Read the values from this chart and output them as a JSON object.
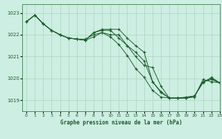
{
  "title": "Graphe pression niveau de la mer (hPa)",
  "background_color": "#cdeee2",
  "grid_color": "#aad4be",
  "line_color": "#1a5c2a",
  "spine_color": "#3a7a4a",
  "xlim": [
    -0.5,
    23
  ],
  "ylim": [
    1018.5,
    1023.4
  ],
  "yticks": [
    1019,
    1020,
    1021,
    1022,
    1023
  ],
  "xtick_labels": [
    "0",
    "1",
    "2",
    "3",
    "4",
    "5",
    "6",
    "7",
    "8",
    "9",
    "10",
    "11",
    "12",
    "13",
    "14",
    "15",
    "16",
    "17",
    "18",
    "19",
    "20",
    "21",
    "22",
    "23"
  ],
  "series": [
    [
      1022.6,
      1022.9,
      1022.5,
      1022.2,
      1022.0,
      1021.85,
      1021.8,
      1021.75,
      1022.1,
      1022.25,
      1022.25,
      1022.25,
      1021.85,
      1021.5,
      1021.2,
      1019.85,
      1019.4,
      1019.1,
      1019.1,
      1019.1,
      1019.15,
      1019.95,
      1019.85,
      1019.8
    ],
    [
      1022.6,
      1022.9,
      1022.5,
      1022.2,
      1022.0,
      1021.85,
      1021.8,
      1021.75,
      1022.1,
      1022.2,
      1022.2,
      1021.85,
      1021.5,
      1021.2,
      1020.8,
      1019.85,
      1019.35,
      1019.1,
      1019.1,
      1019.1,
      1019.2,
      1019.85,
      1019.95,
      1019.8
    ],
    [
      1022.6,
      1022.9,
      1022.5,
      1022.2,
      1022.0,
      1021.85,
      1021.8,
      1021.75,
      1021.9,
      1022.1,
      1021.9,
      1021.55,
      1021.05,
      1020.45,
      1020.05,
      1019.45,
      1019.15,
      1019.1,
      1019.1,
      1019.15,
      1019.2,
      1019.8,
      1020.05,
      1019.8
    ],
    [
      1022.6,
      1022.9,
      1022.5,
      1022.2,
      1022.0,
      1021.85,
      1021.8,
      1021.8,
      1022.0,
      1022.1,
      1022.0,
      1022.0,
      1021.5,
      1021.0,
      1020.6,
      1020.5,
      1019.65,
      1019.1,
      1019.1,
      1019.1,
      1019.2,
      1019.85,
      1020.0,
      1019.8
    ]
  ]
}
